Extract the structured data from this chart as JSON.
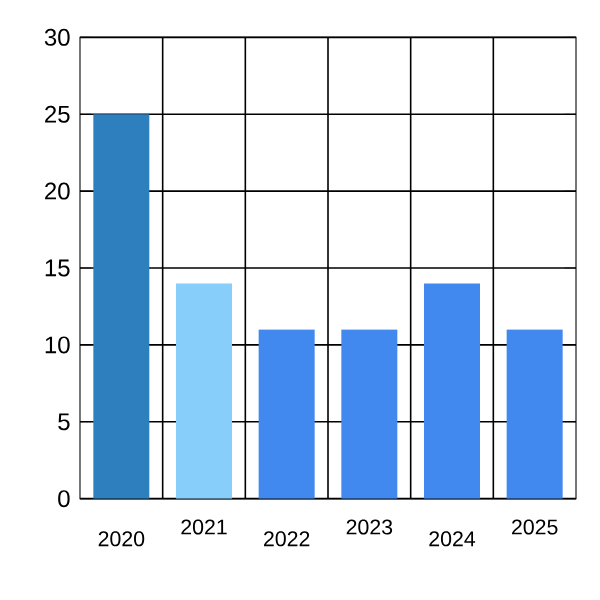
{
  "chart_data": {
    "type": "bar",
    "categories": [
      "2020",
      "2021",
      "2022",
      "2023",
      "2024",
      "2025"
    ],
    "values": [
      25,
      14,
      11,
      11,
      14,
      11
    ],
    "colors": [
      "#2e7fbd",
      "#87cefa",
      "#4189ee",
      "#4189ee",
      "#4189ee",
      "#4189ee"
    ],
    "ylim": [
      0,
      30
    ],
    "yticks": [
      0,
      5,
      10,
      15,
      20,
      25,
      30
    ],
    "grid": true
  }
}
